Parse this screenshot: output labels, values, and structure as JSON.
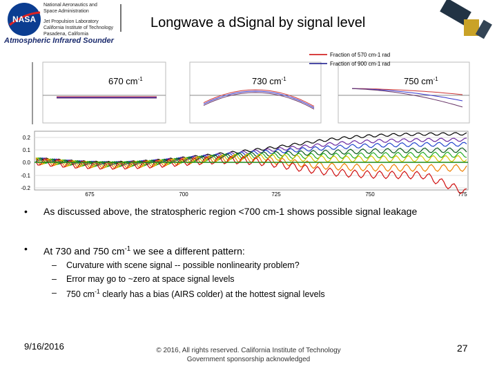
{
  "header": {
    "logo": "NASA",
    "agency": [
      "National Aeronautics and",
      "Space Administration"
    ],
    "lab": [
      "Jet Propulsion Laboratory",
      "California Institute of Technology",
      "Pasadena, California"
    ],
    "instrument": "Atmospheric Infrared Sounder",
    "title": "Longwave a dSignal by signal level"
  },
  "figure": {
    "panels": [
      {
        "label": "670 cm",
        "sup": "-1"
      },
      {
        "label": "730 cm",
        "sup": "-1"
      },
      {
        "label": "750 cm",
        "sup": "-1"
      }
    ],
    "legend": [
      "Fraction of 570 cm-1 rad",
      "Fraction of 900 cm-1 rad"
    ],
    "yticks": [
      "0.2",
      "0.1",
      "0.0",
      "-0.1",
      "-0.2"
    ],
    "xticks": [
      675,
      700,
      725,
      750,
      775
    ]
  },
  "bullets": [
    {
      "text": "As discussed above, the stratospheric region <700 cm-1 shows possible signal leakage"
    },
    {
      "text": "At 730 and 750 cm",
      "sup": "-1",
      "rest": " we see a different pattern:",
      "items": [
        {
          "text": "Curvature with scene signal -- possible nonlinearity problem?"
        },
        {
          "text": "Error may go to ~zero at space signal levels"
        },
        {
          "text": "750 cm",
          "sup": "-1",
          "rest": " clearly has a bias (AIRS colder) at the hottest signal levels"
        }
      ]
    }
  ],
  "footer": {
    "date": "9/16/2016",
    "copyright": "© 2016, All rights reserved. California Institute of Technology",
    "sponsor": "Government sponsorship acknowledged",
    "page": "27"
  }
}
